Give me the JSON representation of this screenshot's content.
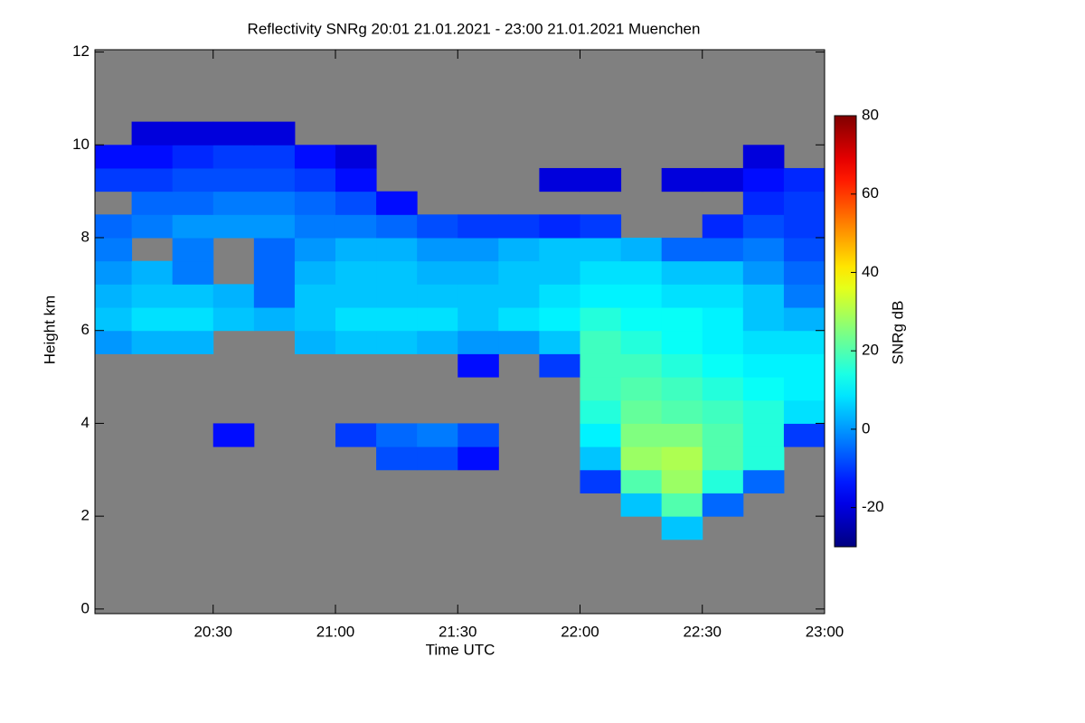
{
  "chart_data": {
    "type": "heatmap",
    "title": "Reflectivity SNRg   20:01 21.01.2021 - 23:00 21.01.2021 Muenchen",
    "xlabel": "Time UTC",
    "ylabel": "Height km",
    "colorbar_label": "SNRg dB",
    "colormap": "jet",
    "nan_color": "#808080",
    "xlim": [
      1201,
      1380
    ],
    "xticks": [
      {
        "value": 1230,
        "label": "20:30"
      },
      {
        "value": 1260,
        "label": "21:00"
      },
      {
        "value": 1290,
        "label": "21:30"
      },
      {
        "value": 1320,
        "label": "22:00"
      },
      {
        "value": 1350,
        "label": "22:30"
      },
      {
        "value": 1380,
        "label": "23:00"
      }
    ],
    "ylim": [
      -0.1,
      12.05
    ],
    "yticks": [
      0,
      2,
      4,
      6,
      8,
      10,
      12
    ],
    "zlim": [
      -30,
      80
    ],
    "zticks": [
      -20,
      0,
      20,
      40,
      60,
      80
    ],
    "x": [
      1201,
      1210,
      1220,
      1230,
      1240,
      1250,
      1260,
      1270,
      1280,
      1290,
      1300,
      1310,
      1320,
      1330,
      1340,
      1350,
      1360,
      1370,
      1380
    ],
    "y": [
      0,
      0.5,
      1,
      1.5,
      2,
      2.5,
      3,
      3.5,
      4,
      4.5,
      5,
      5.5,
      6,
      6.5,
      7,
      7.5,
      8,
      8.5,
      9,
      9.5,
      10,
      10.5,
      11,
      11.5,
      12
    ],
    "z": [
      [
        null,
        null,
        null,
        null,
        null,
        null,
        null,
        null,
        null,
        null,
        null,
        null,
        null,
        null,
        null,
        null,
        null,
        null
      ],
      [
        null,
        null,
        null,
        null,
        null,
        null,
        null,
        null,
        null,
        null,
        null,
        null,
        null,
        null,
        null,
        null,
        null,
        null
      ],
      [
        null,
        null,
        null,
        null,
        null,
        null,
        null,
        null,
        null,
        null,
        null,
        null,
        null,
        null,
        null,
        null,
        null,
        null
      ],
      [
        null,
        null,
        null,
        null,
        null,
        null,
        null,
        null,
        null,
        null,
        null,
        null,
        null,
        null,
        5,
        null,
        null,
        null
      ],
      [
        null,
        null,
        null,
        null,
        null,
        null,
        null,
        null,
        null,
        null,
        null,
        null,
        null,
        5,
        20,
        -5,
        null,
        null
      ],
      [
        null,
        null,
        null,
        null,
        null,
        null,
        null,
        null,
        null,
        null,
        null,
        null,
        -10,
        20,
        28,
        15,
        -5,
        null
      ],
      [
        null,
        null,
        null,
        null,
        null,
        null,
        null,
        -8,
        -8,
        -15,
        null,
        null,
        5,
        28,
        30,
        20,
        15,
        null
      ],
      [
        null,
        null,
        null,
        -15,
        null,
        null,
        -10,
        -5,
        -3,
        -8,
        null,
        null,
        10,
        25,
        25,
        20,
        15,
        -10
      ],
      [
        null,
        null,
        null,
        null,
        null,
        null,
        null,
        null,
        null,
        null,
        null,
        null,
        15,
        22,
        20,
        18,
        15,
        8
      ],
      [
        null,
        null,
        null,
        null,
        null,
        null,
        null,
        null,
        null,
        null,
        null,
        null,
        18,
        20,
        18,
        15,
        12,
        10
      ],
      [
        null,
        null,
        null,
        null,
        null,
        null,
        null,
        null,
        null,
        -15,
        null,
        -10,
        18,
        18,
        15,
        12,
        10,
        10
      ],
      [
        0,
        3,
        3,
        null,
        null,
        3,
        5,
        5,
        3,
        0,
        0,
        5,
        18,
        15,
        12,
        10,
        8,
        8
      ],
      [
        5,
        8,
        8,
        5,
        3,
        5,
        8,
        8,
        8,
        5,
        8,
        10,
        15,
        12,
        12,
        10,
        5,
        3
      ],
      [
        3,
        5,
        5,
        3,
        -5,
        5,
        5,
        5,
        5,
        5,
        5,
        8,
        10,
        10,
        8,
        8,
        5,
        -3
      ],
      [
        0,
        3,
        -3,
        null,
        -5,
        3,
        5,
        5,
        3,
        3,
        5,
        5,
        8,
        8,
        5,
        5,
        0,
        -5
      ],
      [
        -3,
        null,
        -3,
        null,
        -5,
        0,
        3,
        3,
        0,
        0,
        3,
        5,
        5,
        3,
        -5,
        -5,
        -3,
        -8
      ],
      [
        -5,
        -3,
        0,
        0,
        0,
        -3,
        -3,
        -5,
        -8,
        -10,
        -10,
        -12,
        -10,
        null,
        null,
        -12,
        -8,
        -10
      ],
      [
        null,
        -5,
        -5,
        -3,
        -3,
        -5,
        -8,
        -15,
        null,
        null,
        null,
        null,
        null,
        null,
        null,
        null,
        -12,
        -10
      ],
      [
        -10,
        -10,
        -8,
        -8,
        -8,
        -10,
        -15,
        null,
        null,
        null,
        null,
        -20,
        -20,
        null,
        -20,
        -20,
        -15,
        -12
      ],
      [
        -15,
        -15,
        -12,
        -10,
        -10,
        -15,
        -20,
        null,
        null,
        null,
        null,
        null,
        null,
        null,
        null,
        null,
        -20,
        null
      ],
      [
        null,
        -20,
        -20,
        -20,
        -20,
        null,
        null,
        null,
        null,
        null,
        null,
        null,
        null,
        null,
        null,
        null,
        null,
        null
      ],
      [
        null,
        null,
        null,
        null,
        null,
        null,
        null,
        null,
        null,
        null,
        null,
        null,
        null,
        null,
        null,
        null,
        null,
        null
      ],
      [
        null,
        null,
        null,
        null,
        null,
        null,
        null,
        null,
        null,
        null,
        null,
        null,
        null,
        null,
        null,
        null,
        null,
        null
      ],
      [
        null,
        null,
        null,
        null,
        null,
        null,
        null,
        null,
        null,
        null,
        null,
        null,
        null,
        null,
        null,
        null,
        null,
        null
      ]
    ]
  }
}
